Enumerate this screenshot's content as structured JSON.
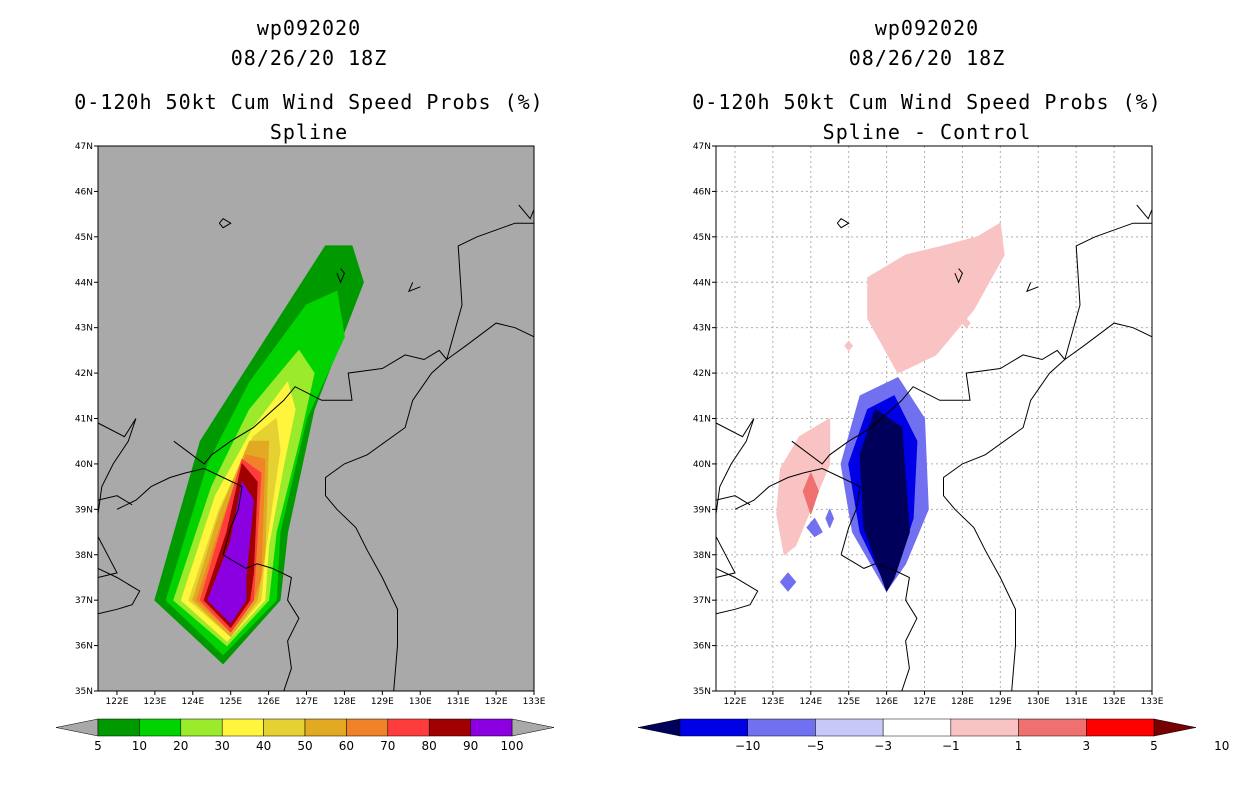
{
  "chart_data": [
    {
      "type": "heatmap",
      "storm_id": "wp092020",
      "datetime": "08/26/20 18Z",
      "title": "0-120h 50kt Cum Wind Speed Probs (%)",
      "subtitle": "Spline",
      "xlim": [
        121.5,
        133.0
      ],
      "ylim": [
        35,
        47
      ],
      "x_ticks": [
        "122E",
        "123E",
        "124E",
        "125E",
        "126E",
        "127E",
        "128E",
        "129E",
        "130E",
        "131E",
        "132E",
        "133E"
      ],
      "y_ticks": [
        "35N",
        "36N",
        "37N",
        "38N",
        "39N",
        "40N",
        "41N",
        "42N",
        "43N",
        "44N",
        "45N",
        "46N",
        "47N"
      ],
      "background": "#a9a9a9",
      "levels": [
        5,
        10,
        20,
        30,
        40,
        50,
        60,
        70,
        80,
        90,
        100
      ],
      "level_labels": [
        "5",
        "10",
        "20",
        "30",
        "40",
        "50",
        "60",
        "70",
        "80",
        "90",
        "100"
      ],
      "colors": [
        "#009a00",
        "#00d300",
        "#9bea2c",
        "#fff53c",
        "#e5d232",
        "#e2a922",
        "#f08228",
        "#ff3c3c",
        "#a00000",
        "#8a00e0"
      ],
      "contours": [
        {
          "level": 5,
          "polygon": [
            [
              124.8,
              35.6
            ],
            [
              123.0,
              37.0
            ],
            [
              124.2,
              40.5
            ],
            [
              125.5,
              42.2
            ],
            [
              127.5,
              44.8
            ],
            [
              128.2,
              44.8
            ],
            [
              128.5,
              44.0
            ],
            [
              127.2,
              41.2
            ],
            [
              126.5,
              38.5
            ],
            [
              126.3,
              37.0
            ]
          ]
        },
        {
          "level": 10,
          "polygon": [
            [
              124.8,
              35.8
            ],
            [
              123.3,
              37.0
            ],
            [
              124.4,
              40.0
            ],
            [
              125.5,
              41.8
            ],
            [
              127.0,
              43.5
            ],
            [
              127.8,
              43.8
            ],
            [
              128.0,
              42.8
            ],
            [
              127.0,
              41.0
            ],
            [
              126.3,
              38.5
            ],
            [
              126.2,
              37.0
            ]
          ]
        },
        {
          "level": 20,
          "polygon": [
            [
              124.9,
              36.0
            ],
            [
              123.5,
              37.0
            ],
            [
              124.5,
              39.5
            ],
            [
              125.5,
              41.2
            ],
            [
              126.8,
              42.5
            ],
            [
              127.2,
              42.0
            ],
            [
              126.8,
              40.5
            ],
            [
              126.2,
              38.5
            ],
            [
              126.0,
              37.0
            ]
          ]
        },
        {
          "level": 30,
          "polygon": [
            [
              124.9,
              36.1
            ],
            [
              123.7,
              37.0
            ],
            [
              124.6,
              39.3
            ],
            [
              125.6,
              40.8
            ],
            [
              126.5,
              41.8
            ],
            [
              126.7,
              41.2
            ],
            [
              126.4,
              40.0
            ],
            [
              126.0,
              38.2
            ],
            [
              125.9,
              37.0
            ]
          ]
        },
        {
          "level": 40,
          "polygon": [
            [
              125.0,
              36.2
            ],
            [
              123.9,
              37.0
            ],
            [
              124.7,
              39.0
            ],
            [
              125.6,
              40.6
            ],
            [
              126.2,
              41.0
            ],
            [
              126.3,
              40.3
            ],
            [
              125.9,
              38.0
            ],
            [
              125.8,
              37.0
            ]
          ]
        },
        {
          "level": 50,
          "polygon": [
            [
              125.0,
              36.2
            ],
            [
              124.0,
              37.0
            ],
            [
              124.7,
              38.9
            ],
            [
              125.5,
              40.5
            ],
            [
              126.0,
              40.5
            ],
            [
              125.9,
              38.0
            ],
            [
              125.7,
              37.0
            ]
          ]
        },
        {
          "level": 60,
          "polygon": [
            [
              125.0,
              36.3
            ],
            [
              124.1,
              37.0
            ],
            [
              124.8,
              38.8
            ],
            [
              125.4,
              40.2
            ],
            [
              125.9,
              40.1
            ],
            [
              125.8,
              37.5
            ],
            [
              125.6,
              37.0
            ]
          ]
        },
        {
          "level": 70,
          "polygon": [
            [
              125.0,
              36.3
            ],
            [
              124.2,
              37.0
            ],
            [
              124.8,
              38.7
            ],
            [
              125.3,
              40.1
            ],
            [
              125.8,
              39.8
            ],
            [
              125.6,
              37.0
            ]
          ]
        },
        {
          "level": 80,
          "polygon": [
            [
              125.0,
              36.4
            ],
            [
              124.3,
              37.0
            ],
            [
              124.9,
              38.5
            ],
            [
              125.3,
              40.0
            ],
            [
              125.7,
              39.6
            ],
            [
              125.6,
              37.6
            ],
            [
              125.5,
              37.0
            ]
          ]
        },
        {
          "level": 90,
          "polygon": [
            [
              125.0,
              36.5
            ],
            [
              124.4,
              37.0
            ],
            [
              125.0,
              38.3
            ],
            [
              125.3,
              39.6
            ],
            [
              125.6,
              39.2
            ],
            [
              125.4,
              37.5
            ],
            [
              125.4,
              37.0
            ]
          ]
        }
      ]
    },
    {
      "type": "heatmap",
      "storm_id": "wp092020",
      "datetime": "08/26/20 18Z",
      "title": "0-120h 50kt Cum Wind Speed Probs (%)",
      "subtitle": "Spline - Control",
      "xlim": [
        121.5,
        133.0
      ],
      "ylim": [
        35,
        47
      ],
      "x_ticks": [
        "122E",
        "123E",
        "124E",
        "125E",
        "126E",
        "127E",
        "128E",
        "129E",
        "130E",
        "131E",
        "132E",
        "133E"
      ],
      "y_ticks": [
        "35N",
        "36N",
        "37N",
        "38N",
        "39N",
        "40N",
        "41N",
        "42N",
        "43N",
        "44N",
        "45N",
        "46N",
        "47N"
      ],
      "background": "#ffffff",
      "grid": true,
      "levels": [
        -10,
        -5,
        -3,
        -1,
        1,
        3,
        5,
        10
      ],
      "level_labels": [
        "-10",
        "-5",
        "-3",
        "-1",
        "1",
        "3",
        "5",
        "10"
      ],
      "colors": [
        "#00005a",
        "#0000e6",
        "#7070f0",
        "#c8c8f8",
        "#ffffff",
        "#fac3c3",
        "#f07070",
        "#ff0000",
        "#780000"
      ],
      "contours": [
        {
          "level": -3,
          "polygon": [
            [
              126.0,
              37.2
            ],
            [
              125.1,
              38.5
            ],
            [
              124.8,
              40.0
            ],
            [
              125.3,
              41.5
            ],
            [
              126.3,
              41.9
            ],
            [
              127.0,
              41.0
            ],
            [
              127.1,
              39.0
            ],
            [
              126.5,
              37.8
            ]
          ]
        },
        {
          "level": -5,
          "polygon": [
            [
              126.0,
              37.3
            ],
            [
              125.3,
              38.5
            ],
            [
              125.0,
              40.0
            ],
            [
              125.5,
              41.2
            ],
            [
              126.2,
              41.5
            ],
            [
              126.8,
              40.5
            ],
            [
              126.7,
              38.8
            ],
            [
              126.3,
              37.8
            ]
          ]
        },
        {
          "level": -10,
          "polygon": [
            [
              126.0,
              37.2
            ],
            [
              125.4,
              38.6
            ],
            [
              125.3,
              40.2
            ],
            [
              125.7,
              41.2
            ],
            [
              126.4,
              40.8
            ],
            [
              126.6,
              38.5
            ],
            [
              126.2,
              37.5
            ]
          ]
        },
        {
          "level": -1,
          "polygon": [
            [
              126.0,
              37.4
            ],
            [
              125.6,
              38.5
            ],
            [
              125.6,
              40.0
            ],
            [
              126.0,
              40.7
            ],
            [
              126.4,
              39.8
            ],
            [
              126.4,
              38.3
            ]
          ]
        },
        {
          "level": -3,
          "polygon": [
            [
              123.4,
              37.6
            ],
            [
              123.2,
              37.4
            ],
            [
              123.4,
              37.2
            ],
            [
              123.6,
              37.4
            ]
          ]
        },
        {
          "level": -3,
          "polygon": [
            [
              123.9,
              38.6
            ],
            [
              124.1,
              38.4
            ],
            [
              124.3,
              38.5
            ],
            [
              124.1,
              38.8
            ]
          ]
        },
        {
          "level": -3,
          "polygon": [
            [
              124.5,
              39.0
            ],
            [
              124.4,
              38.8
            ],
            [
              124.5,
              38.6
            ],
            [
              124.6,
              38.8
            ]
          ]
        },
        {
          "level": 1,
          "polygon": [
            [
              126.3,
              42.0
            ],
            [
              125.5,
              43.2
            ],
            [
              125.5,
              44.1
            ],
            [
              126.5,
              44.6
            ],
            [
              127.5,
              44.8
            ],
            [
              128.4,
              45.0
            ],
            [
              129.0,
              45.3
            ],
            [
              129.1,
              44.6
            ],
            [
              128.3,
              43.4
            ],
            [
              127.3,
              42.4
            ]
          ]
        },
        {
          "level": 1,
          "polygon": [
            [
              123.3,
              38.0
            ],
            [
              123.1,
              38.9
            ],
            [
              123.2,
              39.9
            ],
            [
              123.7,
              40.6
            ],
            [
              124.5,
              41.0
            ],
            [
              124.5,
              40.0
            ],
            [
              124.0,
              39.0
            ],
            [
              123.6,
              38.2
            ]
          ]
        },
        {
          "level": 3,
          "polygon": [
            [
              124.0,
              38.9
            ],
            [
              123.8,
              39.4
            ],
            [
              124.0,
              39.8
            ],
            [
              124.2,
              39.4
            ]
          ]
        },
        {
          "level": 1,
          "polygon": [
            [
              125.0,
              42.5
            ],
            [
              124.9,
              42.6
            ],
            [
              125.0,
              42.7
            ],
            [
              125.1,
              42.6
            ]
          ]
        },
        {
          "level": 1,
          "polygon": [
            [
              128.1,
              43.0
            ],
            [
              128.0,
              43.1
            ],
            [
              128.1,
              43.2
            ],
            [
              128.2,
              43.1
            ]
          ]
        }
      ]
    }
  ]
}
